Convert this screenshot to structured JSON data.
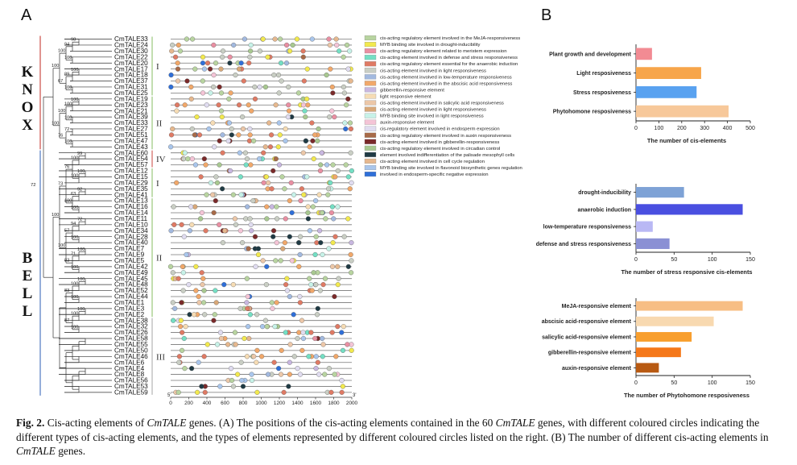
{
  "panel_a_label": "A",
  "panel_b_label": "B",
  "caption": {
    "fig": "Fig. 2.",
    "p1": " Cis-acting elements of ",
    "gene1": "CmTALE",
    "p2": " genes. (A) The positions of the cis-acting elements contained in the 60 ",
    "gene2": "CmTALE",
    "p3": " genes, with different coloured circles indicating the different types of cis-acting elements, and the types of elements represented by different coloured circles listed on the right. (B) The number of different cis-acting elements in ",
    "gene3": "CmTALE",
    "p4": " genes."
  },
  "genes": [
    "CmTALE33",
    "CmTALE24",
    "CmTALE30",
    "CmTALE22",
    "CmTALE20",
    "CmTALE17",
    "CmTALE18",
    "CmTALE37",
    "CmTALE31",
    "CmTALE25",
    "CmTALE19",
    "CmTALE23",
    "CmTALE21",
    "CmTALE39",
    "CmTALE33",
    "CmTALE27",
    "CmTALE51",
    "CmTALE47",
    "CmTALE43",
    "CmTALE60",
    "CmTALE54",
    "CmTALE57",
    "CmTALE12",
    "CmTALE15",
    "CmTALE29",
    "CmTALE35",
    "CmTALE41",
    "CmTALE13",
    "CmTALE16",
    "CmTALE14",
    "CmTALE11",
    "CmTALE10",
    "CmTALE34",
    "CmTALE28",
    "CmTALE40",
    "CmTALE7",
    "CmTALE9",
    "CmTALE5",
    "CmTALE42",
    "CmTALE49",
    "CmTALE45",
    "CmTALE48",
    "CmTALE52",
    "CmTALE44",
    "CmTALE1",
    "CmTALE3",
    "CmTALE2",
    "CmTALE38",
    "CmTALE32",
    "CmTALE26",
    "CmTALE58",
    "CmTALE55",
    "CmTALE50",
    "CmTALE46",
    "CmTALE6",
    "CmTALE4",
    "CmTALE8",
    "CmTALE56",
    "CmTALE53",
    "CmTALE59"
  ],
  "family_labels": [
    {
      "text": "KNOX",
      "color": "#d97a74"
    },
    {
      "text": "BELL",
      "color": "#7b9ad0"
    }
  ],
  "group_labels": [
    "I",
    "II",
    "IV",
    "I",
    "II",
    "III"
  ],
  "bootstrap_values": [
    "98",
    "94",
    "100",
    "100",
    "100",
    "89",
    "100",
    "67",
    "100",
    "100",
    "100",
    "100",
    "100",
    "72",
    "100",
    "76",
    "100",
    "99",
    "100",
    "100",
    "100",
    "76",
    "92",
    "63",
    "100",
    "100",
    "73",
    "72",
    "94",
    "100",
    "57",
    "100",
    "71",
    "100",
    "83",
    "100",
    "100",
    "100",
    "100",
    "100",
    "83",
    "100",
    "100",
    "100",
    "87"
  ],
  "axis_a": {
    "ticks": [
      "0",
      "200",
      "400",
      "600",
      "800",
      "1000",
      "1200",
      "1400",
      "1600",
      "1800",
      "2000"
    ],
    "start_label": "5'",
    "end_label": "3'"
  },
  "legend": [
    {
      "label": "cis-acting regulatory element involved in the MeJA-responsiveness",
      "color": "#b8d4a0"
    },
    {
      "label": "MYB binding site involved in drought-inducibility",
      "color": "#f2e94e"
    },
    {
      "label": "cis-acting regulatory element related to meristem expression",
      "color": "#e98fa2"
    },
    {
      "label": "cis-acting element involved in defense and stress responsiveness",
      "color": "#74dfc4"
    },
    {
      "label": "cis-acting regulatory element essential for the anaerobic induction",
      "color": "#df7a64"
    },
    {
      "label": "cis-acting element involved in light responsiveness",
      "color": "#c9cec4"
    },
    {
      "label": "cis-acting element involved in low-temperature responsiveness",
      "color": "#a2b9df"
    },
    {
      "label": "cis-acting element involved in the abscisic acid responsiveness",
      "color": "#f1a86a"
    },
    {
      "label": "gibberellin-responsive element",
      "color": "#c8b7e0"
    },
    {
      "label": "light responsive element",
      "color": "#f6dcb4"
    },
    {
      "label": "cis-acting element involved in salicylic acid responsiveness",
      "color": "#ecc7a8"
    },
    {
      "label": "cis-acting element involved in light responsiveness",
      "color": "#d8a878"
    },
    {
      "label": "MYB binding site involved in light responsiveness",
      "color": "#c7f2e8"
    },
    {
      "label": "auxin-responsive element",
      "color": "#f4c4d6"
    },
    {
      "label": "cis-regulatory element involved in endosperm expression",
      "color": "#e0dcf0"
    },
    {
      "label": "cis-acting regulatory element involved in auxin responsiveness",
      "color": "#a76a48"
    },
    {
      "label": "cis-acting element involved in gibberellin-responsiveness",
      "color": "#7a2a2a"
    },
    {
      "label": "cis-acting regulatory element involved in circadian control",
      "color": "#a8c890"
    },
    {
      "label": "element involved indifferentiation of the palisade mesophyll cells",
      "color": "#1f3a44"
    },
    {
      "label": "cis-acting element involved in cell cycle regulation",
      "color": "#e6b88e"
    },
    {
      "label": "MYB binding site involved in flavonoid biosynthetic genes regulation",
      "color": "#a9c6ec"
    },
    {
      "label": "involved in endosperm-specific negative expression",
      "color": "#2f6fd8"
    }
  ],
  "chart_data": [
    {
      "type": "bar",
      "orientation": "horizontal",
      "categories": [
        "Plant growth and development",
        "Light resposiveness",
        "Stress resposiveness",
        "Phytohomone resposiveness"
      ],
      "values": [
        70,
        285,
        265,
        405
      ],
      "colors": [
        "#f28b93",
        "#f7a54a",
        "#59a2f0",
        "#f7c89a"
      ],
      "xlabel": "The number of cis-elements",
      "xlim": [
        0,
        500
      ],
      "xticks": [
        "0",
        "100",
        "200",
        "300",
        "400",
        "500"
      ]
    },
    {
      "type": "bar",
      "orientation": "horizontal",
      "categories": [
        "drought-inducibility",
        "anaerobic induction",
        "low-temperature responsiveness",
        "defense and stress responsiveness"
      ],
      "values": [
        63,
        140,
        22,
        44
      ],
      "colors": [
        "#7ea2d6",
        "#4a4fe0",
        "#b9b8f4",
        "#8a90d4"
      ],
      "xlabel": "The number of stress responsive cis-elements",
      "xlim": [
        0,
        150
      ],
      "xticks": [
        "0",
        "50",
        "100",
        "150"
      ]
    },
    {
      "type": "bar",
      "orientation": "horizontal",
      "categories": [
        "MeJA-responsive element",
        "abscisic acid-responsive element",
        "salicylic acid-responsive element",
        "gibberellin-responsive element",
        "auxin-responsive element"
      ],
      "values": [
        140,
        102,
        73,
        59,
        30
      ],
      "colors": [
        "#f7be84",
        "#f8d9b0",
        "#f89f2e",
        "#f5781a",
        "#b85a12"
      ],
      "xlabel": "The number of Phytohomone resposiveness",
      "xlim": [
        0,
        150
      ],
      "xticks": [
        "0",
        "50",
        "100",
        "150"
      ]
    }
  ]
}
